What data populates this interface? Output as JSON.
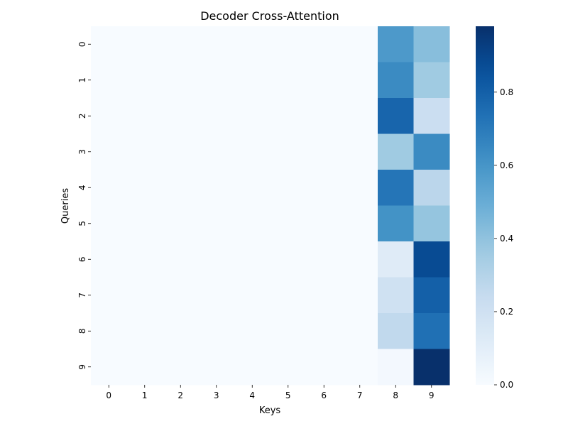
{
  "chart_data": {
    "type": "heatmap",
    "title": "Decoder Cross-Attention",
    "xlabel": "Keys",
    "ylabel": "Queries",
    "x_categories": [
      "0",
      "1",
      "2",
      "3",
      "4",
      "5",
      "6",
      "7",
      "8",
      "9"
    ],
    "y_categories": [
      "0",
      "1",
      "2",
      "3",
      "4",
      "5",
      "6",
      "7",
      "8",
      "9"
    ],
    "colormap": "Blues",
    "vmin": 0.0,
    "vmax": 0.98,
    "colorbar_ticks": [
      0.0,
      0.2,
      0.4,
      0.6,
      0.8
    ],
    "colorbar_tick_labels": [
      "0.0",
      "0.2",
      "0.4",
      "0.6",
      "0.8"
    ],
    "values": [
      [
        0,
        0,
        0,
        0,
        0,
        0,
        0,
        0,
        0.58,
        0.42
      ],
      [
        0,
        0,
        0,
        0,
        0,
        0,
        0,
        0,
        0.64,
        0.36
      ],
      [
        0,
        0,
        0,
        0,
        0,
        0,
        0,
        0,
        0.78,
        0.22
      ],
      [
        0,
        0,
        0,
        0,
        0,
        0,
        0,
        0,
        0.36,
        0.64
      ],
      [
        0,
        0,
        0,
        0,
        0,
        0,
        0,
        0,
        0.72,
        0.28
      ],
      [
        0,
        0,
        0,
        0,
        0,
        0,
        0,
        0,
        0.61,
        0.39
      ],
      [
        0,
        0,
        0,
        0,
        0,
        0,
        0,
        0,
        0.12,
        0.88
      ],
      [
        0,
        0,
        0,
        0,
        0,
        0,
        0,
        0,
        0.2,
        0.8
      ],
      [
        0,
        0,
        0,
        0,
        0,
        0,
        0,
        0,
        0.26,
        0.74
      ],
      [
        0,
        0,
        0,
        0,
        0,
        0,
        0,
        0,
        0.02,
        0.98
      ]
    ]
  }
}
